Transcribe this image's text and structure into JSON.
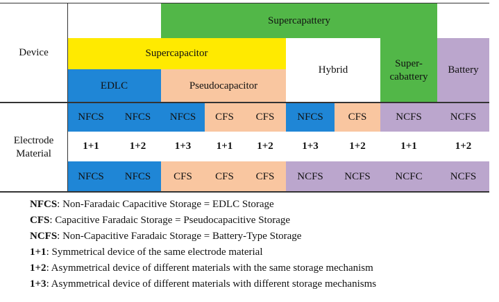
{
  "device": {
    "label": "Device",
    "supercapattery": "Supercapattery",
    "supercapacitor": "Supercapacitor",
    "edlc": "EDLC",
    "pseudocapacitor": "Pseudocapacitor",
    "hybrid": "Hybrid",
    "supercabattery": "Super-\ncabattery",
    "battery": "Battery"
  },
  "electrode_material": {
    "label": "Electrode\nMaterial",
    "rows": [
      [
        "NFCS",
        "NFCS",
        "NFCS",
        "CFS",
        "CFS",
        "NFCS",
        "CFS",
        "NCFS",
        "NCFS"
      ],
      [
        "1+1",
        "1+2",
        "1+3",
        "1+1",
        "1+2",
        "1+3",
        "1+2",
        "1+1",
        "1+2"
      ],
      [
        "NFCS",
        "NFCS",
        "CFS",
        "CFS",
        "CFS",
        "NCFS",
        "NCFS",
        "NCFC",
        "NCFS"
      ]
    ]
  },
  "legend": [
    {
      "term": "NFCS",
      "text": ": Non-Faradaic Capacitive Storage = EDLC Storage"
    },
    {
      "term": "CFS",
      "text": ": Capacitive Faradaic Storage = Pseudocapacitive Storage"
    },
    {
      "term": "NCFS",
      "text": ": Non-Capacitive Faradaic Storage = Battery-Type Storage"
    },
    {
      "term": "1+1",
      "text": ": Symmetrical device of the same electrode material"
    },
    {
      "term": "1+2",
      "text": ": Asymmetrical device of different materials with the same storage mechanism"
    },
    {
      "term": "1+3",
      "text": ": Asymmetrical device of different materials with different storage mechanisms"
    }
  ]
}
